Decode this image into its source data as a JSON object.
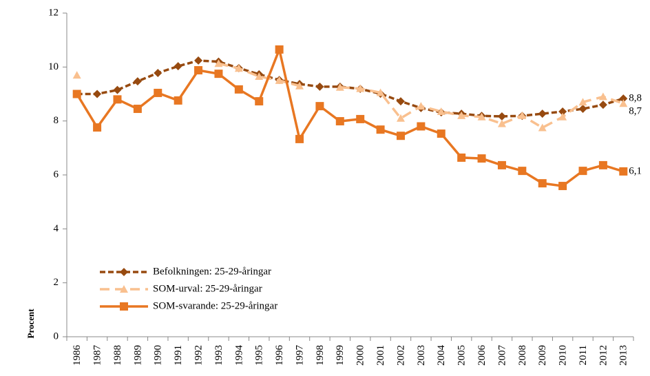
{
  "chart_data": {
    "type": "line",
    "categories": [
      "1986",
      "1987",
      "1988",
      "1989",
      "1990",
      "1991",
      "1992",
      "1993",
      "1994",
      "1995",
      "1996",
      "1997",
      "1998",
      "1999",
      "2000",
      "2001",
      "2002",
      "2003",
      "2004",
      "2005",
      "2006",
      "2007",
      "2008",
      "2009",
      "2010",
      "2011",
      "2012",
      "2013"
    ],
    "series": [
      {
        "name": "Befolkningen: 25-29-åringar",
        "color": "#974A10",
        "marker": "diamond",
        "dash": "8,4",
        "values": [
          9.0,
          9.0,
          9.15,
          9.47,
          9.78,
          10.03,
          10.24,
          10.2,
          9.96,
          9.73,
          9.52,
          9.37,
          9.27,
          9.27,
          9.19,
          9.01,
          8.73,
          8.48,
          8.32,
          8.27,
          8.19,
          8.17,
          8.19,
          8.27,
          8.35,
          8.45,
          8.6,
          8.83
        ],
        "value_labels": [
          null,
          null,
          null,
          null,
          null,
          null,
          null,
          null,
          null,
          null,
          null,
          null,
          null,
          null,
          null,
          null,
          null,
          null,
          null,
          null,
          null,
          null,
          null,
          null,
          null,
          null,
          null,
          "8,8"
        ]
      },
      {
        "name": "SOM-urval: 25-29-åringar",
        "color": "#F9C08F",
        "marker": "triangle",
        "dash": "14,8",
        "values": [
          9.7,
          null,
          null,
          null,
          null,
          null,
          null,
          10.13,
          9.95,
          9.65,
          9.5,
          9.3,
          null,
          9.25,
          9.2,
          9.05,
          8.1,
          8.55,
          8.35,
          8.2,
          8.15,
          7.9,
          8.2,
          7.75,
          8.15,
          8.7,
          8.9,
          8.65
        ],
        "value_labels": [
          null,
          null,
          null,
          null,
          null,
          null,
          null,
          null,
          null,
          null,
          null,
          null,
          null,
          null,
          null,
          null,
          null,
          null,
          null,
          null,
          null,
          null,
          null,
          null,
          null,
          null,
          null,
          "8,7"
        ]
      },
      {
        "name": "SOM-svarande: 25-29-åringar",
        "color": "#E87722",
        "marker": "square",
        "dash": "",
        "values": [
          9.0,
          7.76,
          8.8,
          8.45,
          9.04,
          8.76,
          9.88,
          9.75,
          9.17,
          8.73,
          10.65,
          7.33,
          8.55,
          7.99,
          8.07,
          7.68,
          7.45,
          7.8,
          7.53,
          6.64,
          6.61,
          6.36,
          6.15,
          5.69,
          5.59,
          6.15,
          6.36,
          6.13
        ],
        "value_labels": [
          null,
          null,
          null,
          null,
          null,
          null,
          null,
          null,
          null,
          null,
          null,
          null,
          null,
          null,
          null,
          null,
          null,
          null,
          null,
          null,
          null,
          null,
          null,
          null,
          null,
          null,
          null,
          "6,1"
        ]
      }
    ],
    "ylabel": "Procent",
    "ylim": [
      0,
      12
    ],
    "yticks": [
      0,
      2,
      4,
      6,
      8,
      10,
      12
    ],
    "grid": false,
    "legend": "lower left"
  }
}
